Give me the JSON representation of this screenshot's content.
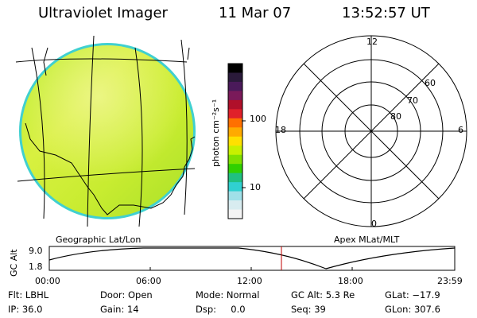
{
  "header": {
    "instrument": "Ultraviolet Imager",
    "date": "11 Mar 07",
    "time": "13:52:57 UT"
  },
  "colorbar": {
    "unit_label": "photon cm⁻²s⁻¹",
    "ticks": [
      "100",
      "10"
    ],
    "colors": [
      "#000000",
      "#2a1a3a",
      "#4a1a5a",
      "#7a1a5a",
      "#b0102a",
      "#e0202a",
      "#ff7000",
      "#ffaa00",
      "#ffe000",
      "#c8f000",
      "#80e000",
      "#30d000",
      "#20c080",
      "#30d0d0",
      "#a0e0e8",
      "#d8ecf0",
      "#f4f4f4"
    ]
  },
  "left_panel": {
    "caption": "Geographic Lat/Lon"
  },
  "right_panel": {
    "caption": "Apex MLat/MLT",
    "mlt_labels": {
      "top": "12",
      "left": "18",
      "right": "6",
      "bottom": "0"
    },
    "mlat_labels": [
      "60",
      "70",
      "80"
    ]
  },
  "altitude_plot": {
    "ylabel": "GC Alt",
    "y_ticks": [
      "9.0",
      "1.8"
    ],
    "x_ticks": [
      "00:00",
      "06:00",
      "12:00",
      "18:00",
      "23:59"
    ],
    "current_time_marker": "13:52:57",
    "marker_color": "#c00000"
  },
  "footer": {
    "col1": [
      "Flt: LBHL",
      "IP: 36.0"
    ],
    "col2": [
      "Door: Open",
      "Gain: 14"
    ],
    "col3": [
      "Mode: Normal",
      "Dsp:     0.0"
    ],
    "col4": [
      "GC Alt: 5.3 Re",
      "Seq: 39"
    ],
    "col5": [
      "GLat: −17.9",
      "GLon: 307.6"
    ]
  }
}
